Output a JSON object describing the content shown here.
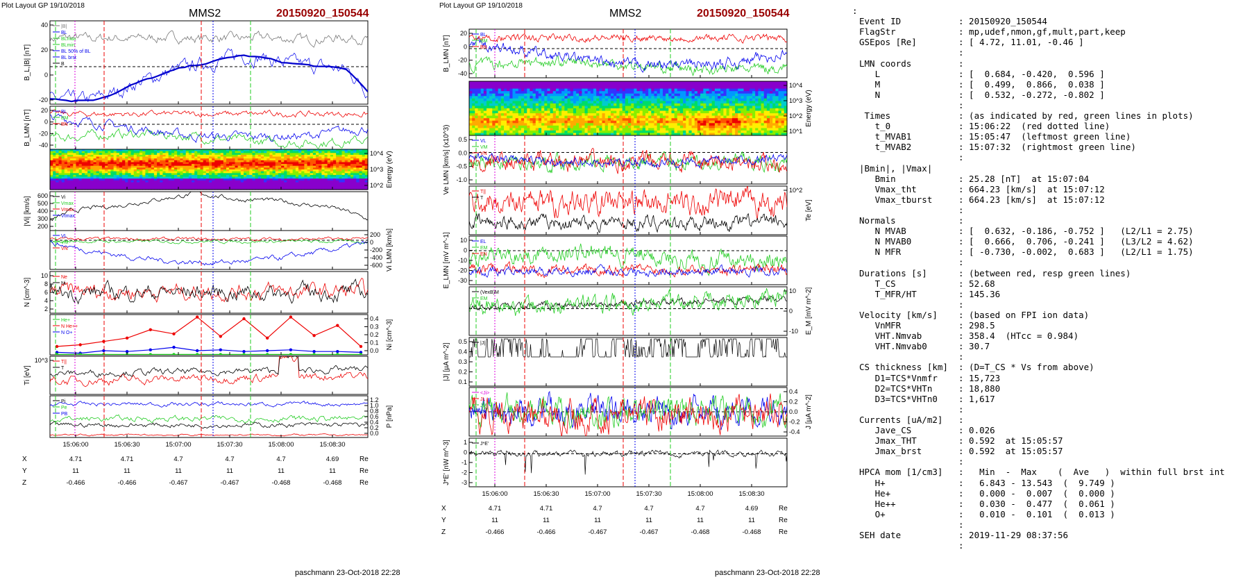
{
  "colors": {
    "red": "#ee0000",
    "green": "#22cc22",
    "blue": "#0000ee",
    "black": "#000000",
    "magenta": "#dd00dd",
    "title_red": "#990000",
    "gray": "#777777"
  },
  "left_figure": {
    "header": "Plot Layout GP 19/10/2018",
    "spacecraft": "MMS2",
    "event": "20150920_150544",
    "time_ticks": [
      "15:06:00",
      "15:06:30",
      "15:07:00",
      "15:07:30",
      "15:08:00",
      "15:08:30"
    ],
    "ephemeris": {
      "labels": [
        "X",
        "Y",
        "Z"
      ],
      "unit": "Re",
      "X": [
        "4.71",
        "4.71",
        "4.7",
        "4.7",
        "4.7",
        "4.69"
      ],
      "Y": [
        "11",
        "11",
        "11",
        "11",
        "11",
        "11"
      ],
      "Z": [
        "-0.466",
        "-0.466",
        "-0.467",
        "-0.467",
        "-0.468",
        "-0.468"
      ]
    },
    "footer": "paschmann 23-Oct-2018 22:28",
    "panels": {
      "bl": {
        "ylabel": "B_L,|B| [nT]",
        "ticks": [
          "40",
          "20",
          "0",
          "-20"
        ],
        "legend": [
          "|B|",
          "BL",
          "BLmax",
          "BLmin",
          "BL 50% of BL",
          "BL brst",
          "B"
        ]
      },
      "blmn": {
        "ylabel": "B_LMN [nT]",
        "ticks": [
          "20",
          "0",
          "-20",
          "-40"
        ],
        "legend": [
          "BL",
          "BM",
          "BN"
        ]
      },
      "energy": {
        "ylabel": "Energy (eV)",
        "ticks": [
          "10^4",
          "10^3",
          "10^2"
        ]
      },
      "vi": {
        "ylabel": "|Vi| [km/s]",
        "ticks": [
          "600",
          "500",
          "400",
          "300",
          "200"
        ],
        "legend": [
          "Vi",
          "Vmax",
          "Vmax",
          "Vtmax"
        ]
      },
      "vilmn": {
        "ylabel": "Vi LMN [km/s]",
        "ticks": [
          "200",
          "0",
          "-200",
          "-400",
          "-600"
        ],
        "legend": [
          "VL",
          "VM",
          "VN"
        ]
      },
      "n": {
        "ylabel": "N [cm^-3]",
        "ticks": [
          "10",
          "8",
          "6",
          "4",
          "2"
        ],
        "legend": [
          "Ne",
          "Ni"
        ]
      },
      "nhpca": {
        "ylabel": "Ni [cm^-3]",
        "ticks": [
          "0.4",
          "0.3",
          "0.2",
          "0.1",
          "0.0"
        ],
        "legend": [
          "He+",
          "N He++",
          "N O+"
        ]
      },
      "ti": {
        "ylabel": "Ti [eV]",
        "ticks": [
          "10^3"
        ],
        "legend": [
          "T||",
          "T"
        ]
      },
      "p": {
        "ylabel": "P [nPa]",
        "ticks": [
          "1.2",
          "1.0",
          "0.8",
          "0.6",
          "0.4",
          "0.2",
          "0.0"
        ],
        "legend": [
          "Pi",
          "Pe",
          "PB"
        ]
      }
    }
  },
  "right_figure": {
    "header": "Plot Layout GP 19/10/2018",
    "spacecraft": "MMS2",
    "event": "20150920_150544",
    "time_ticks": [
      "15:06:00",
      "15:06:30",
      "15:07:00",
      "15:07:30",
      "15:08:00",
      "15:08:30"
    ],
    "ephemeris": {
      "labels": [
        "X",
        "Y",
        "Z"
      ],
      "unit": "Re",
      "X": [
        "4.71",
        "4.71",
        "4.7",
        "4.7",
        "4.7",
        "4.69"
      ],
      "Y": [
        "11",
        "11",
        "11",
        "11",
        "11",
        "11"
      ],
      "Z": [
        "-0.466",
        "-0.466",
        "-0.467",
        "-0.467",
        "-0.468",
        "-0.468"
      ]
    },
    "footer": "paschmann 23-Oct-2018 22:28",
    "panels": {
      "blmn": {
        "ylabel": "B_LMN [nT]",
        "ticks": [
          "20",
          "0",
          "-20",
          "-40"
        ],
        "legend": [
          "BL",
          "BM",
          "BN"
        ]
      },
      "energy": {
        "ylabel": "Energy (eV)",
        "ticks": [
          "10^4",
          "10^3",
          "10^2",
          "10^1"
        ]
      },
      "ve": {
        "ylabel": "Ve LMN [km/s] (x10^3)",
        "ticks": [
          "0.5",
          "0.0",
          "-0.5",
          "-1.0"
        ],
        "legend": [
          "VL",
          "VM",
          "VN"
        ]
      },
      "te": {
        "ylabel": "Te [eV]",
        "ticks": [
          "10^2"
        ],
        "legend": [
          "T||",
          "T"
        ]
      },
      "e": {
        "ylabel": "E_LMN [mV m^-1]",
        "ticks": [
          "10",
          "0",
          "-10",
          "-20",
          "-30"
        ],
        "legend": [
          "EL",
          "EM",
          "EN"
        ]
      },
      "em": {
        "ylabel": "E_M [mV m^-2]",
        "ticks": [
          "10",
          "0",
          "-10"
        ],
        "legend": [
          "(VexB)M",
          "EM"
        ]
      },
      "j": {
        "ylabel": "|J| [µA m^-2]",
        "ticks": [
          "0.5",
          "0.4",
          "0.3",
          "0.2",
          "0.1"
        ],
        "legend": [
          "|J|"
        ]
      },
      "jlmn": {
        "ylabel": "J [µA m^-2]",
        "ticks": [
          "0.4",
          "0.2",
          "0.0",
          "-0.2",
          "-0.4"
        ],
        "legend": [
          "<Ji>",
          "JL",
          "JM",
          "JN"
        ]
      },
      "je": {
        "ylabel": "J*E' [nW m^-3]",
        "ticks": [
          "1",
          "0",
          "-1",
          "-2",
          "-3"
        ],
        "legend": [
          "J*E'"
        ]
      }
    }
  },
  "info": {
    "lines": [
      {
        "l": ":",
        "r": ""
      },
      {
        "l": "Event ID",
        "r": ": 20150920_150544"
      },
      {
        "l": "FlagStr",
        "r": ": mp,udef,nmon,gf,mult,part,keep"
      },
      {
        "l": "GSEpos [Re]",
        "r": ": [ 4.72, 11.01, -0.46 ]"
      },
      {
        "l": "",
        "r": ":"
      },
      {
        "l": "LMN coords",
        "r": ":"
      },
      {
        "l": "   L",
        "r": ": [  0.684, -0.420,  0.596 ]"
      },
      {
        "l": "   M",
        "r": ": [  0.499,  0.866,  0.038 ]"
      },
      {
        "l": "   N",
        "r": ": [  0.532, -0.272, -0.802 ]"
      },
      {
        "l": "",
        "r": ":"
      },
      {
        "l": " Times",
        "r": ": (as indicated by red, green lines in plots)"
      },
      {
        "l": "   t_0",
        "r": ": 15:06:22  (red dotted line)"
      },
      {
        "l": "   t_MVAB1",
        "r": ": 15:05:47  (leftmost green line)"
      },
      {
        "l": "   t_MVAB2",
        "r": ": 15:07:32  (rightmost green line)"
      },
      {
        "l": "",
        "r": ":"
      },
      {
        "l": "|Bmin|, |Vmax|",
        "r": ""
      },
      {
        "l": "   Bmin",
        "r": ": 25.28 [nT]  at 15:07:04"
      },
      {
        "l": "   Vmax_tht",
        "r": ": 664.23 [km/s]  at 15:07:12"
      },
      {
        "l": "   Vmax_tburst",
        "r": ": 664.23 [km/s]  at 15:07:12"
      },
      {
        "l": "",
        "r": ":"
      },
      {
        "l": "Normals",
        "r": ":"
      },
      {
        "l": "   N MVAB",
        "r": ": [  0.632, -0.186, -0.752 ]   (L2/L1 = 2.75)"
      },
      {
        "l": "   N MVAB0",
        "r": ": [  0.666,  0.706, -0.241 ]   (L3/L2 = 4.62)"
      },
      {
        "l": "   N MFR",
        "r": ": [ -0.730, -0.002,  0.683 ]   (L2/L1 = 1.75)"
      },
      {
        "l": "",
        "r": ":"
      },
      {
        "l": "Durations [s]",
        "r": ": (between red, resp green lines)"
      },
      {
        "l": "   T_CS",
        "r": ": 52.68"
      },
      {
        "l": "   T_MFR/HT",
        "r": ": 145.36"
      },
      {
        "l": "",
        "r": ":"
      },
      {
        "l": "Velocity [km/s]",
        "r": ": (based on FPI ion data)"
      },
      {
        "l": "   VnMFR",
        "r": ": 298.5"
      },
      {
        "l": "   VHT.Nmvab",
        "r": ": 358.4  (HTcc = 0.984)"
      },
      {
        "l": "   VHT.Nmvab0",
        "r": ": 30.7"
      },
      {
        "l": "",
        "r": ":"
      },
      {
        "l": "CS thickness [km]",
        "r": ": (D=T_CS * Vs from above)"
      },
      {
        "l": "   D1=TCS*Vnmfr",
        "r": ": 15,723"
      },
      {
        "l": "   D2=TCS*VHTn",
        "r": ": 18,880"
      },
      {
        "l": "   D3=TCS*VHTn0",
        "r": ": 1,617"
      },
      {
        "l": "",
        "r": ":"
      },
      {
        "l": "Currents [uA/m2]",
        "r": ":"
      },
      {
        "l": "   Jave_CS",
        "r": ": 0.026"
      },
      {
        "l": "   Jmax_THT",
        "r": ": 0.592  at 15:05:57"
      },
      {
        "l": "   Jmax_brst",
        "r": ": 0.592  at 15:05:57"
      },
      {
        "l": "",
        "r": ":"
      },
      {
        "l": "HPCA mom [1/cm3]",
        "r": ":   Min  -  Max    (  Ave   )  within full brst int"
      },
      {
        "l": "   H+",
        "r": ":   6.843 - 13.543  (  9.749 )"
      },
      {
        "l": "   He+",
        "r": ":   0.000 -  0.007  (  0.000 )"
      },
      {
        "l": "   He++",
        "r": ":   0.030 -  0.477  (  0.061 )"
      },
      {
        "l": "   O+",
        "r": ":   0.010 -  0.101  (  0.013 )"
      },
      {
        "l": "",
        "r": ":"
      },
      {
        "l": "SEH date",
        "r": ": 2019-11-29 08:37:56"
      },
      {
        "l": "",
        "r": ":"
      }
    ]
  },
  "chart_data": [
    {
      "type": "line",
      "title": "MMS2 20150920_150544",
      "x_range": [
        "15:05:45",
        "15:08:35"
      ],
      "panels": [
        "B_L,|B| [nT]",
        "B_LMN [nT]",
        "Energy (eV) ion spectrogram",
        "|Vi| [km/s]",
        "Vi LMN [km/s]",
        "N [cm^-3]",
        "Ni HPCA [cm^-3]",
        "Ti [eV]",
        "P [nPa]"
      ],
      "markers": {
        "t_0": "15:06:22",
        "t_MVAB1": "15:05:47",
        "t_MVAB2": "15:07:32"
      },
      "series_samples": {
        "absB": [
          30,
          31,
          30,
          31,
          30,
          31,
          31,
          30,
          31,
          30,
          31,
          30,
          29,
          30,
          31,
          30
        ],
        "BL": [
          -20,
          -22,
          -21,
          -16,
          -8,
          -2,
          4,
          8,
          12,
          16,
          14,
          10,
          8,
          6,
          4,
          -14
        ],
        "Vi": [
          300,
          420,
          460,
          480,
          520,
          560,
          600,
          640,
          600,
          560,
          560,
          540,
          500,
          480,
          420,
          320
        ],
        "He_pp": [
          0.1,
          0.12,
          0.16,
          0.2,
          0.3,
          0.25,
          0.45,
          0.22,
          0.43,
          0.2,
          0.45,
          0.23,
          0.35,
          0.1
        ],
        "O_p": [
          0.03,
          0.02,
          0.05,
          0.04,
          0.06,
          0.09,
          0.05,
          0.06,
          0.04,
          0.05,
          0.06,
          0.04,
          0.04,
          0.03
        ]
      }
    },
    {
      "type": "line",
      "title": "MMS2 20150920_150544",
      "x_range": [
        "15:05:45",
        "15:08:35"
      ],
      "panels": [
        "B_LMN [nT]",
        "Energy (eV) electron spectrogram",
        "Ve LMN [km/s](x10^3)",
        "Te [eV]",
        "E_LMN [mV m^-1]",
        "E_M [mV m^-2]",
        "|J| [µA m^-2]",
        "J [µA m^-2]",
        "J*E' [nW m^-3]"
      ],
      "markers": {
        "t_0": "15:06:22",
        "t_MVAB1": "15:05:47",
        "t_MVAB2": "15:07:32"
      }
    }
  ]
}
